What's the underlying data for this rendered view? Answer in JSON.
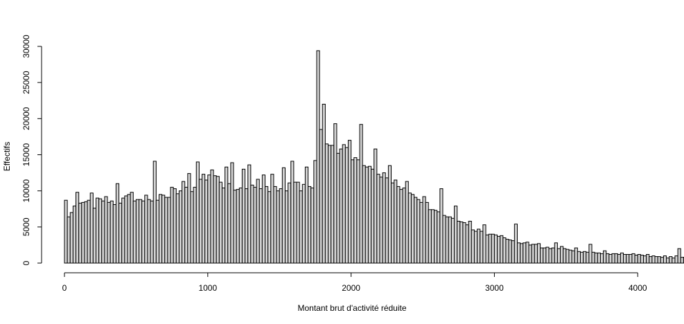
{
  "chart_data": {
    "type": "bar",
    "title": "",
    "xlabel": "Montant brut d'activité réduite",
    "ylabel": "Effectifs",
    "xlim": [
      0,
      4170
    ],
    "ylim": [
      0,
      30000
    ],
    "bin_width": 20,
    "x_ticks": [
      0,
      1000,
      2000,
      3000,
      4000
    ],
    "x_tick_labels": [
      "0",
      "1000",
      "2000",
      "3000",
      "4000"
    ],
    "y_ticks": [
      0,
      5000,
      10000,
      15000,
      20000,
      25000,
      30000
    ],
    "y_tick_labels": [
      "0",
      "5000",
      "10000",
      "15000",
      "20000",
      "25000",
      "30000"
    ],
    "grid": false,
    "legend": "none",
    "colors": {
      "bar_fill": "#d3d3d3",
      "bar_stroke": "#000000",
      "axis": "#000000"
    },
    "values": [
      8700,
      6400,
      7000,
      7900,
      9800,
      8300,
      8400,
      8500,
      8700,
      9700,
      7600,
      9000,
      8900,
      8600,
      9200,
      8400,
      8600,
      8100,
      11000,
      8300,
      9000,
      9300,
      9500,
      9800,
      8600,
      8800,
      8800,
      8600,
      9400,
      8800,
      8600,
      14100,
      8700,
      9500,
      9400,
      9100,
      9100,
      10500,
      10300,
      9600,
      10000,
      11300,
      10500,
      12400,
      9900,
      10500,
      14000,
      11600,
      12300,
      11500,
      12200,
      12900,
      12100,
      12000,
      11200,
      10400,
      13300,
      11000,
      13900,
      10100,
      10200,
      10400,
      13000,
      10300,
      13600,
      10800,
      10500,
      11600,
      10300,
      12200,
      10600,
      9900,
      12300,
      10600,
      10000,
      10300,
      13200,
      10000,
      11100,
      14100,
      11200,
      11200,
      10000,
      10900,
      13300,
      10600,
      10400,
      14200,
      29400,
      18500,
      22000,
      16500,
      16300,
      16300,
      19300,
      15200,
      15800,
      16400,
      16000,
      17000,
      14300,
      14600,
      14300,
      19200,
      13500,
      13300,
      13400,
      13000,
      15800,
      12300,
      11900,
      12500,
      11800,
      13500,
      11100,
      11500,
      10600,
      10200,
      10400,
      11300,
      9700,
      9500,
      9100,
      8800,
      8400,
      9200,
      8400,
      7400,
      7400,
      7300,
      7100,
      10300,
      6600,
      6400,
      6400,
      6200,
      7900,
      5800,
      5700,
      5600,
      5300,
      5800,
      4600,
      4400,
      4700,
      4400,
      5300,
      3900,
      4000,
      4000,
      3900,
      3700,
      3800,
      3500,
      3300,
      3200,
      3100,
      5400,
      2800,
      2700,
      2800,
      2900,
      2500,
      2600,
      2600,
      2700,
      2100,
      2100,
      2200,
      2000,
      2100,
      2800,
      2000,
      2300,
      2000,
      1900,
      1800,
      1700,
      2100,
      1600,
      1500,
      1600,
      1500,
      2600,
      1500,
      1400,
      1400,
      1300,
      1700,
      1300,
      1200,
      1300,
      1300,
      1200,
      1400,
      1200,
      1200,
      1200,
      1300,
      1100,
      1200,
      1100,
      1000,
      1200,
      900,
      1000,
      900,
      900,
      800,
      1000,
      700,
      900,
      700,
      1000,
      2000,
      800,
      800,
      800,
      700,
      800,
      600,
      700,
      700,
      900
    ]
  }
}
